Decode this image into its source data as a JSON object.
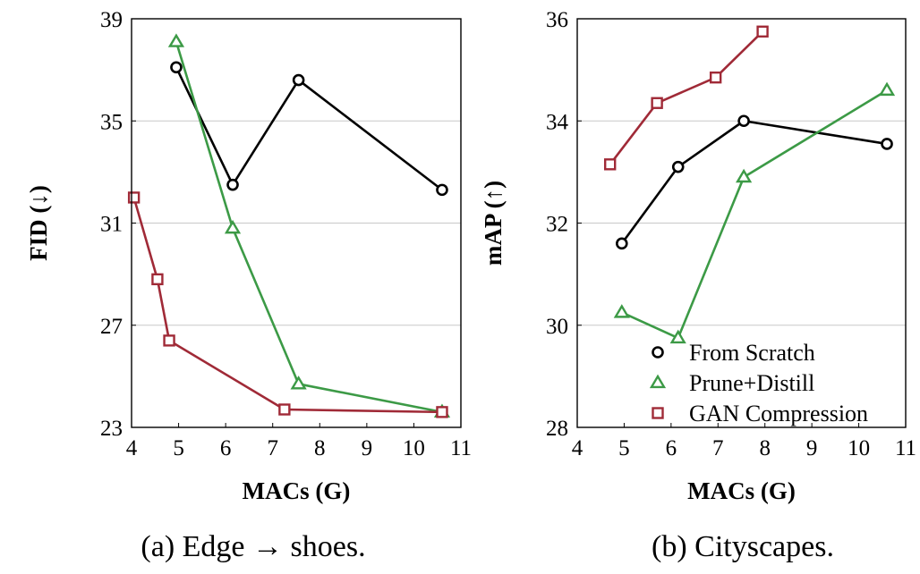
{
  "chart_data": [
    {
      "type": "line",
      "caption": "(a) Edge → shoes.",
      "xlabel": "MACs (G)",
      "ylabel": "FID (↓)",
      "xlim": [
        4,
        11
      ],
      "ylim": [
        23,
        39
      ],
      "xticks": [
        4,
        5,
        6,
        7,
        8,
        9,
        10,
        11
      ],
      "yticks": [
        23,
        27,
        31,
        35,
        39
      ],
      "grid": "horizontal",
      "series": [
        {
          "name": "From Scratch",
          "marker": "circle",
          "color": "#000000",
          "x": [
            4.95,
            6.15,
            7.55,
            10.6
          ],
          "y": [
            37.1,
            32.5,
            36.6,
            32.3
          ]
        },
        {
          "name": "Prune+Distill",
          "marker": "triangle",
          "color": "#3c9a46",
          "x": [
            4.95,
            6.15,
            7.55,
            10.6
          ],
          "y": [
            38.1,
            30.8,
            24.7,
            23.6
          ]
        },
        {
          "name": "GAN Compression",
          "marker": "square",
          "color": "#a02a37",
          "x": [
            4.05,
            4.55,
            4.8,
            7.25,
            10.6
          ],
          "y": [
            32.0,
            28.8,
            26.4,
            23.7,
            23.6
          ]
        }
      ]
    },
    {
      "type": "line",
      "caption": "(b) Cityscapes.",
      "xlabel": "MACs (G)",
      "ylabel": "mAP (↑)",
      "xlim": [
        4,
        11
      ],
      "ylim": [
        28,
        36
      ],
      "xticks": [
        4,
        5,
        6,
        7,
        8,
        9,
        10,
        11
      ],
      "yticks": [
        28,
        30,
        32,
        34,
        36
      ],
      "grid": "horizontal",
      "legend": "bottom-right",
      "series": [
        {
          "name": "From Scratch",
          "marker": "circle",
          "color": "#000000",
          "x": [
            4.95,
            6.15,
            7.55,
            10.6
          ],
          "y": [
            31.6,
            33.1,
            34.0,
            33.55
          ]
        },
        {
          "name": "Prune+Distill",
          "marker": "triangle",
          "color": "#3c9a46",
          "x": [
            4.95,
            6.15,
            7.55,
            10.6
          ],
          "y": [
            30.25,
            29.75,
            32.9,
            34.6
          ]
        },
        {
          "name": "GAN Compression",
          "marker": "square",
          "color": "#a02a37",
          "x": [
            4.7,
            5.7,
            6.95,
            7.95
          ],
          "y": [
            33.15,
            34.35,
            34.85,
            35.75
          ]
        }
      ]
    }
  ]
}
